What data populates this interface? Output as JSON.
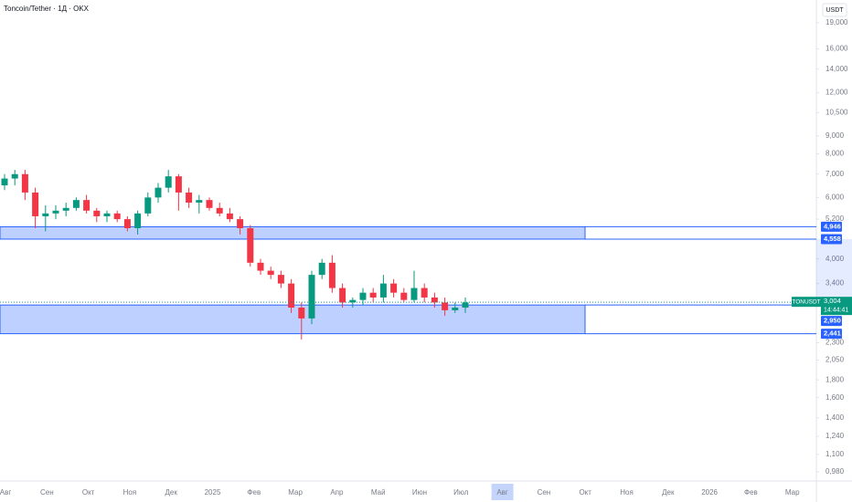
{
  "chart_data": {
    "type": "candlestick",
    "title": "Toncoin/Tether · 1Д · OKX",
    "currency": "USDT",
    "log_scale": true,
    "up_color": "#089981",
    "down_color": "#f23645",
    "zone_color": "#2962ff",
    "ylim": [
      0.923,
      22.1
    ],
    "yticks": [
      {
        "value": 19,
        "label": "19,000"
      },
      {
        "value": 16,
        "label": "16,000"
      },
      {
        "value": 14,
        "label": "14,000"
      },
      {
        "value": 12,
        "label": "12,000"
      },
      {
        "value": 10.5,
        "label": "10,500"
      },
      {
        "value": 9,
        "label": "9,000"
      },
      {
        "value": 8,
        "label": "8,000"
      },
      {
        "value": 7,
        "label": "7,000"
      },
      {
        "value": 6,
        "label": "6,000"
      },
      {
        "value": 5.2,
        "label": "5,200"
      },
      {
        "value": 4,
        "label": "4,000"
      },
      {
        "value": 3.4,
        "label": "3,400"
      },
      {
        "value": 2.3,
        "label": "2,300"
      },
      {
        "value": 2.05,
        "label": "2,050"
      },
      {
        "value": 1.8,
        "label": "1,800"
      },
      {
        "value": 1.6,
        "label": "1,600"
      },
      {
        "value": 1.4,
        "label": "1,400"
      },
      {
        "value": 1.24,
        "label": "1,240"
      },
      {
        "value": 1.1,
        "label": "1,100"
      },
      {
        "value": 0.98,
        "label": "0,980"
      }
    ],
    "x_labels": [
      "Авг",
      "Сен",
      "Окт",
      "Ноя",
      "Дек",
      "2025",
      "Фев",
      "Мар",
      "Апр",
      "Май",
      "Июн",
      "Июл",
      "Авг",
      "Сен",
      "Окт",
      "Ноя",
      "Дек",
      "2026",
      "Фев",
      "Мар"
    ],
    "candles": {
      "open": [
        6.5,
        6.8,
        7.0,
        6.2,
        5.3,
        5.4,
        5.5,
        5.6,
        5.9,
        5.5,
        5.3,
        5.4,
        5.2,
        4.9,
        5.4,
        6.0,
        6.4,
        6.9,
        6.2,
        5.8,
        5.9,
        5.6,
        5.4,
        5.2,
        4.9,
        3.9,
        3.7,
        3.6,
        3.4,
        2.9,
        2.7,
        3.6,
        3.9,
        3.3,
        3.0,
        3.05,
        3.2,
        3.1,
        3.4,
        3.2,
        3.05,
        3.3,
        3.1,
        3.0,
        2.85,
        2.9
      ],
      "high": [
        7.0,
        7.2,
        7.2,
        6.4,
        5.7,
        5.7,
        5.8,
        6.0,
        6.1,
        5.6,
        5.5,
        5.5,
        5.3,
        5.5,
        6.2,
        6.6,
        7.2,
        7.0,
        6.4,
        6.1,
        6.0,
        5.8,
        5.6,
        5.3,
        5.0,
        4.0,
        3.8,
        3.7,
        3.5,
        3.0,
        3.7,
        4.0,
        4.1,
        3.4,
        3.1,
        3.3,
        3.3,
        3.6,
        3.5,
        3.3,
        3.7,
        3.4,
        3.2,
        3.1,
        3.0,
        3.1
      ],
      "low": [
        6.3,
        6.5,
        5.9,
        4.9,
        4.8,
        5.2,
        5.3,
        5.5,
        5.4,
        5.1,
        5.1,
        5.1,
        4.8,
        4.7,
        5.3,
        5.8,
        6.2,
        5.5,
        5.6,
        5.4,
        5.5,
        5.3,
        5.1,
        4.7,
        3.8,
        3.6,
        3.5,
        3.3,
        2.8,
        2.35,
        2.6,
        3.5,
        3.2,
        2.9,
        2.9,
        2.95,
        3.0,
        3.0,
        3.1,
        3.0,
        3.0,
        3.0,
        2.9,
        2.75,
        2.8,
        2.8
      ],
      "close": [
        6.8,
        7.0,
        6.2,
        5.3,
        5.4,
        5.5,
        5.6,
        5.9,
        5.5,
        5.3,
        5.4,
        5.2,
        4.9,
        5.4,
        6.0,
        6.4,
        6.9,
        6.2,
        5.8,
        5.9,
        5.6,
        5.4,
        5.2,
        4.9,
        3.9,
        3.7,
        3.6,
        3.4,
        2.9,
        2.7,
        3.6,
        3.9,
        3.3,
        3.0,
        3.05,
        3.2,
        3.1,
        3.4,
        3.2,
        3.05,
        3.3,
        3.1,
        3.0,
        2.85,
        2.9,
        3.0
      ]
    },
    "zones": [
      {
        "top": {
          "value": 4.946,
          "label": "4,946"
        },
        "bottom": {
          "value": 4.558,
          "label": "4,558"
        }
      },
      {
        "top": {
          "value": 2.95,
          "label": "2,950"
        },
        "bottom": {
          "value": 2.441,
          "label": "2,441"
        }
      }
    ],
    "current": {
      "symbol": "TONUSDT",
      "price": {
        "value": 3.004,
        "label": "3,004"
      },
      "countdown": "14:44:41"
    }
  }
}
